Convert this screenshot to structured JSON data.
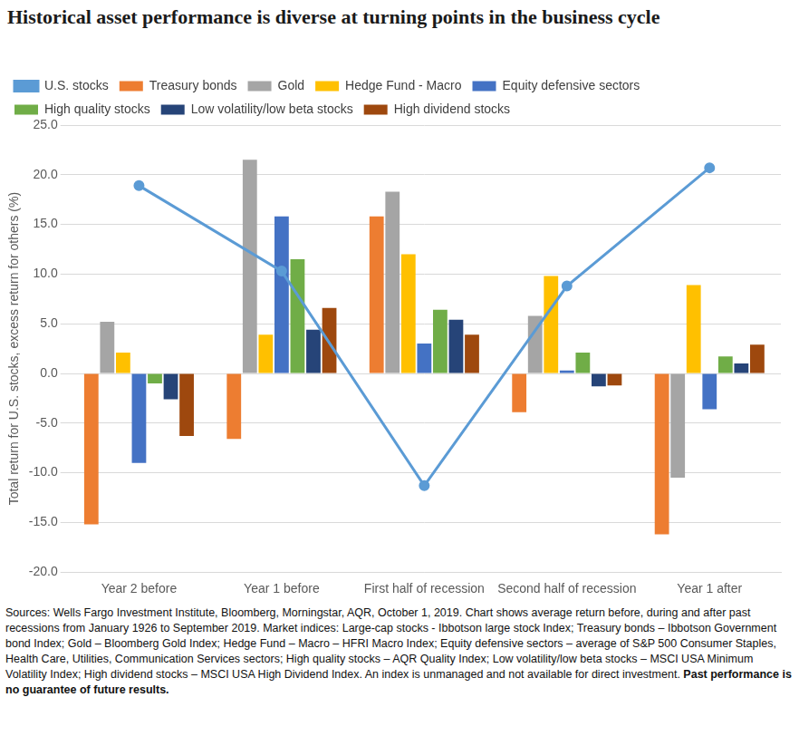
{
  "chart_data": {
    "type": "bar",
    "title": "Historical asset performance is diverse at turning points in the business cycle",
    "y_label": "Total return for U.S. stocks, excess return for others (%)",
    "categories": [
      "Year 2 before",
      "Year 1 before",
      "First half of recession",
      "Second half of recession",
      "Year 1 after"
    ],
    "series": [
      {
        "name": "Treasury bonds",
        "color": "#ED7D31",
        "values": [
          -15.2,
          -6.6,
          15.8,
          -3.9,
          -16.2
        ]
      },
      {
        "name": "Gold",
        "color": "#A5A5A5",
        "values": [
          5.2,
          21.5,
          18.3,
          5.8,
          -10.5
        ]
      },
      {
        "name": "Hedge Fund - Macro",
        "color": "#FFC000",
        "values": [
          2.1,
          3.9,
          12.0,
          9.8,
          8.9
        ]
      },
      {
        "name": "Equity defensive sectors",
        "color": "#4472C4",
        "values": [
          -9.0,
          15.8,
          3.0,
          0.3,
          -3.6
        ]
      },
      {
        "name": "High quality stocks",
        "color": "#70AD47",
        "values": [
          -1.0,
          11.5,
          6.4,
          2.1,
          1.7
        ]
      },
      {
        "name": "Low volatility/low beta stocks",
        "color": "#264478",
        "values": [
          -2.6,
          4.4,
          5.4,
          -1.3,
          1.0
        ]
      },
      {
        "name": "High dividend stocks",
        "color": "#9E480E",
        "values": [
          -6.3,
          6.6,
          3.9,
          -1.2,
          2.9
        ]
      },
      {
        "name": "U.S. stocks",
        "color": "#5B9BD5",
        "type": "line",
        "marker": "circle",
        "values": [
          18.9,
          10.3,
          -11.3,
          8.8,
          20.7
        ]
      }
    ],
    "ylim": [
      -20,
      25
    ],
    "yticks": [
      {
        "value": -20,
        "label": "-20.0"
      },
      {
        "value": -15,
        "label": "-15.0"
      },
      {
        "value": -10,
        "label": "-10.0"
      },
      {
        "value": -5,
        "label": "-5.0"
      },
      {
        "value": 0,
        "label": "0.0"
      },
      {
        "value": 5,
        "label": "5.0"
      },
      {
        "value": 10,
        "label": "10.0"
      },
      {
        "value": 15,
        "label": "15.0"
      },
      {
        "value": 20,
        "label": "20.0"
      },
      {
        "value": 25,
        "label": "25.0"
      }
    ],
    "grid": true,
    "legend": "top",
    "source": "Sources: Wells Fargo Investment Institute, Bloomberg, Morningstar, AQR, October 1, 2019. Chart shows average return before, during and after past recessions from January 1926 to September 2019. Market indices: Large-cap stocks - Ibbotson large stock Index; Treasury bonds – Ibbotson Government bond Index; Gold – Bloomberg Gold Index; Hedge Fund – Macro – HFRI Macro Index; Equity defensive sectors – average of S&P 500 Consumer Staples, Health Care, Utilities, Communication Services sectors; High quality stocks – AQR Quality Index; Low volatility/low beta stocks – MSCI USA Minimum Volatility Index; High dividend stocks – MSCI USA High Dividend Index. An index is unmanaged and not available for direct investment.",
    "disclaimer": "Past performance is no guarantee of future results."
  }
}
